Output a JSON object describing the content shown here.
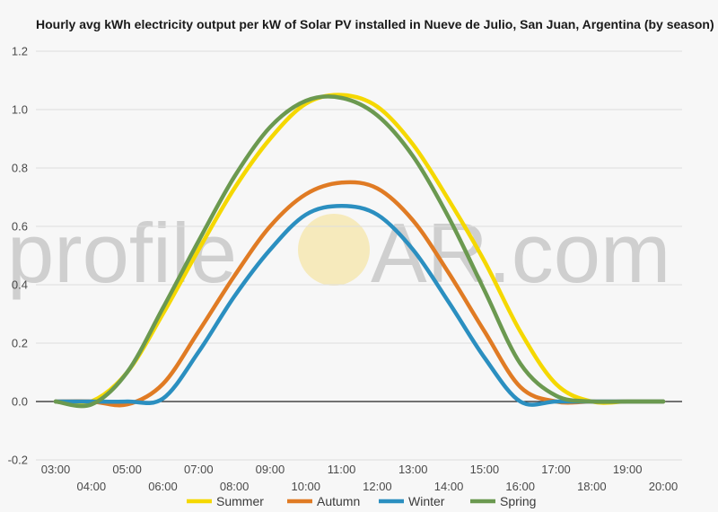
{
  "chart_data": {
    "type": "line",
    "title": "Hourly avg kWh electricity output per kW of Solar PV installed in Nueve de Julio, San Juan, Argentina (by season)",
    "watermark": {
      "left": "profile",
      "right": "AR.com"
    },
    "ylim": [
      -0.2,
      1.2
    ],
    "yticks": [
      -0.2,
      0.0,
      0.2,
      0.4,
      0.6,
      0.8,
      1.0,
      1.2
    ],
    "ytick_labels": [
      "-0.2",
      "0.0",
      "0.2",
      "0.4",
      "0.6",
      "0.8",
      "1.0",
      "1.2"
    ],
    "grid": true,
    "legend": "bottom",
    "x": [
      "03:00",
      "04:00",
      "05:00",
      "06:00",
      "07:00",
      "08:00",
      "09:00",
      "10:00",
      "11:00",
      "12:00",
      "13:00",
      "14:00",
      "15:00",
      "16:00",
      "17:00",
      "18:00",
      "19:00",
      "20:00"
    ],
    "series": [
      {
        "name": "Summer",
        "color": "#f5d800",
        "values": [
          0.0,
          0.0,
          0.1,
          0.3,
          0.52,
          0.73,
          0.9,
          1.02,
          1.05,
          1.01,
          0.88,
          0.69,
          0.48,
          0.24,
          0.06,
          0.0,
          0.0,
          0.0
        ]
      },
      {
        "name": "Autumn",
        "color": "#e07b24",
        "values": [
          0.0,
          0.0,
          -0.01,
          0.06,
          0.24,
          0.43,
          0.6,
          0.71,
          0.75,
          0.73,
          0.62,
          0.44,
          0.24,
          0.05,
          0.0,
          0.0,
          0.0,
          0.0
        ]
      },
      {
        "name": "Winter",
        "color": "#2b8fc0",
        "values": [
          0.0,
          0.0,
          0.0,
          0.01,
          0.17,
          0.36,
          0.52,
          0.64,
          0.67,
          0.64,
          0.52,
          0.34,
          0.15,
          0.0,
          0.0,
          0.0,
          0.0,
          0.0
        ]
      },
      {
        "name": "Spring",
        "color": "#6b9950",
        "values": [
          0.0,
          -0.01,
          0.1,
          0.32,
          0.55,
          0.77,
          0.94,
          1.03,
          1.04,
          0.98,
          0.84,
          0.63,
          0.38,
          0.13,
          0.02,
          0.0,
          0.0,
          0.0
        ]
      }
    ]
  }
}
